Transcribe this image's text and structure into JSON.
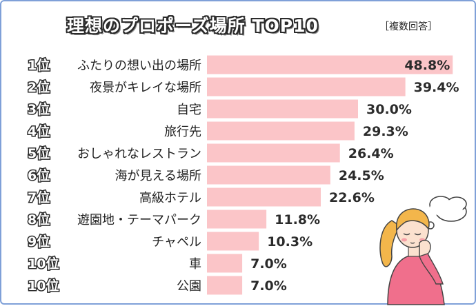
{
  "header": {
    "title": "理想のプロポーズ場所 TOP10",
    "subtitle": "［複数回答］"
  },
  "chart_data": {
    "type": "bar",
    "orientation": "horizontal",
    "title": "理想のプロポーズ場所 TOP10",
    "subtitle": "［複数回答］",
    "ranks": [
      "1位",
      "2位",
      "3位",
      "4位",
      "5位",
      "6位",
      "7位",
      "8位",
      "9位",
      "10位",
      "10位"
    ],
    "categories": [
      "ふたりの想い出の場所",
      "夜景がキレイな場所",
      "自宅",
      "旅行先",
      "おしゃれなレストラン",
      "海が見える場所",
      "高級ホテル",
      "遊園地・テーマパーク",
      "チャペル",
      "車",
      "公園"
    ],
    "values": [
      48.8,
      39.4,
      30.0,
      29.3,
      26.4,
      24.5,
      22.6,
      11.8,
      10.3,
      7.0,
      7.0
    ],
    "value_labels": [
      "48.8%",
      "39.4%",
      "30.0%",
      "29.3%",
      "26.4%",
      "24.5%",
      "22.6%",
      "11.8%",
      "10.3%",
      "7.0%",
      "7.0%"
    ],
    "unit": "%",
    "xlim": [
      0,
      50
    ],
    "bar_color": "#fbc5c8",
    "grid": false
  },
  "illustration": {
    "icon": "thinking-woman-illustration",
    "bubble_icon": "thought-bubble-icon"
  }
}
